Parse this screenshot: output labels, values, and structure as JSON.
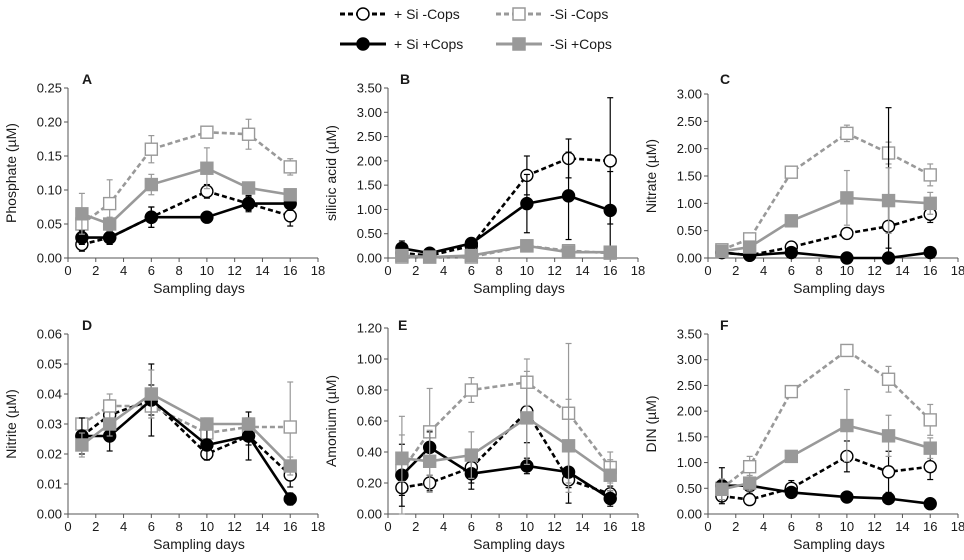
{
  "legend": {
    "entries": [
      {
        "label": "+ Si -Cops",
        "color": "#000000",
        "dash": true,
        "marker": "circle",
        "filled": false
      },
      {
        "label": "-Si -Cops",
        "color": "#999999",
        "dash": true,
        "marker": "square",
        "filled": false
      },
      {
        "label": "+ Si +Cops",
        "color": "#000000",
        "dash": false,
        "marker": "circle",
        "filled": true
      },
      {
        "label": "-Si +Cops",
        "color": "#999999",
        "dash": false,
        "marker": "square",
        "filled": true
      }
    ]
  },
  "chart_data": [
    {
      "panel": "A",
      "type": "line",
      "xlabel": "Sampling days",
      "ylabel": "Phosphate (µM)",
      "xlim": [
        0,
        18
      ],
      "xticks": [
        "0",
        "2",
        "4",
        "6",
        "8",
        "10",
        "12",
        "14",
        "16",
        "18"
      ],
      "ylim": [
        0,
        0.25
      ],
      "yticks": [
        "0.00",
        "0.05",
        "0.10",
        "0.15",
        "0.20",
        "0.25"
      ],
      "x": [
        1,
        3,
        6,
        10,
        13,
        16
      ],
      "series": [
        {
          "name": "+ Si -Cops",
          "values": [
            0.02,
            0.03,
            0.06,
            0.098,
            0.08,
            0.062
          ],
          "err": [
            0.01,
            0.01,
            0.015,
            0.01,
            0.01,
            0.015
          ]
        },
        {
          "name": "-Si -Cops",
          "values": [
            0.05,
            0.08,
            0.16,
            0.185,
            0.182,
            0.134
          ],
          "err": [
            0.015,
            0.035,
            0.02,
            0.0,
            0.022,
            0.012
          ]
        },
        {
          "name": "+ Si +Cops",
          "values": [
            0.03,
            0.03,
            0.06,
            0.06,
            0.08,
            0.08
          ],
          "err": [
            0.01,
            0.01,
            0.015,
            0.0,
            0.012,
            0.01
          ]
        },
        {
          "name": "-Si +Cops",
          "values": [
            0.065,
            0.05,
            0.108,
            0.132,
            0.103,
            0.093
          ],
          "err": [
            0.03,
            0.01,
            0.015,
            0.03,
            0.005,
            0.005
          ]
        }
      ]
    },
    {
      "panel": "B",
      "type": "line",
      "xlabel": "Sampling days",
      "ylabel": "silicic acid (µM)",
      "xlim": [
        0,
        18
      ],
      "xticks": [
        "0",
        "2",
        "4",
        "6",
        "8",
        "10",
        "12",
        "14",
        "16",
        "18"
      ],
      "ylim": [
        0,
        3.5
      ],
      "yticks": [
        "0.00",
        "0.50",
        "1.00",
        "1.50",
        "2.00",
        "2.50",
        "3.00",
        "3.50"
      ],
      "x": [
        1,
        3,
        6,
        10,
        13,
        16
      ],
      "series": [
        {
          "name": "+ Si -Cops",
          "values": [
            0.1,
            0.05,
            0.25,
            1.7,
            2.05,
            2.0
          ],
          "err": [
            0.05,
            0.02,
            0.1,
            0.4,
            0.4,
            1.3
          ]
        },
        {
          "name": "-Si -Cops",
          "values": [
            0.02,
            0.02,
            0.02,
            0.25,
            0.15,
            0.1
          ],
          "err": [
            0.02,
            0.02,
            0.02,
            0.1,
            0.1,
            0.1
          ]
        },
        {
          "name": "+ Si +Cops",
          "values": [
            0.2,
            0.1,
            0.3,
            1.12,
            1.28,
            0.98
          ],
          "err": [
            0.15,
            0.05,
            0.1,
            0.6,
            0.9,
            0.8
          ]
        },
        {
          "name": "-Si +Cops",
          "values": [
            0.05,
            0.02,
            0.05,
            0.25,
            0.12,
            0.12
          ],
          "err": [
            0.03,
            0.02,
            0.03,
            0.1,
            0.1,
            0.1
          ]
        }
      ]
    },
    {
      "panel": "C",
      "type": "line",
      "xlabel": "Sampling days",
      "ylabel": "Nitrate (µM)",
      "xlim": [
        0,
        18
      ],
      "xticks": [
        "0",
        "2",
        "4",
        "6",
        "8",
        "10",
        "12",
        "14",
        "16",
        "18"
      ],
      "ylim": [
        0,
        3.0
      ],
      "yticks": [
        "0.00",
        "0.50",
        "1.00",
        "1.50",
        "2.00",
        "2.50",
        "3.00"
      ],
      "x": [
        1,
        3,
        6,
        10,
        13,
        16
      ],
      "series": [
        {
          "name": "+ Si -Cops",
          "values": [
            0.1,
            0.05,
            0.2,
            0.45,
            0.58,
            0.8
          ],
          "err": [
            0.05,
            0.03,
            0.1,
            0.1,
            0.4,
            0.15
          ]
        },
        {
          "name": "-Si -Cops",
          "values": [
            0.15,
            0.35,
            1.57,
            2.28,
            1.92,
            1.52
          ],
          "err": [
            0.05,
            0.1,
            0.05,
            0.15,
            0.2,
            0.2
          ]
        },
        {
          "name": "+ Si +Cops",
          "values": [
            0.1,
            0.05,
            0.1,
            0.0,
            0.0,
            0.1
          ],
          "err": [
            0.03,
            0.02,
            0.05,
            0.02,
            2.75,
            0.1
          ]
        },
        {
          "name": "-Si +Cops",
          "values": [
            0.12,
            0.2,
            0.68,
            1.1,
            1.05,
            1.0
          ],
          "err": [
            0.05,
            0.05,
            0.05,
            0.5,
            0.6,
            0.2
          ]
        }
      ]
    },
    {
      "panel": "D",
      "type": "line",
      "xlabel": "Sampling days",
      "ylabel": "Nitrite (µM)",
      "xlim": [
        0,
        18
      ],
      "xticks": [
        "0",
        "2",
        "4",
        "6",
        "8",
        "10",
        "12",
        "14",
        "16",
        "18"
      ],
      "ylim": [
        0,
        0.06
      ],
      "yticks": [
        "0.00",
        "0.01",
        "0.02",
        "0.03",
        "0.04",
        "0.05",
        "0.06"
      ],
      "x": [
        1,
        3,
        6,
        10,
        13,
        16
      ],
      "series": [
        {
          "name": "+ Si -Cops",
          "values": [
            0.026,
            0.033,
            0.038,
            0.02,
            0.026,
            0.013
          ],
          "err": [
            0.003,
            0.005,
            0.005,
            0.002,
            0.003,
            0.004
          ]
        },
        {
          "name": "-Si -Cops",
          "values": [
            0.03,
            0.036,
            0.036,
            0.027,
            0.029,
            0.029
          ],
          "err": [
            0.002,
            0.004,
            0.004,
            0.003,
            0.003,
            0.015
          ]
        },
        {
          "name": "+ Si +Cops",
          "values": [
            0.026,
            0.026,
            0.038,
            0.023,
            0.026,
            0.005
          ],
          "err": [
            0.006,
            0.005,
            0.012,
            0.005,
            0.008,
            0.002
          ]
        },
        {
          "name": "-Si +Cops",
          "values": [
            0.023,
            0.03,
            0.04,
            0.03,
            0.03,
            0.016
          ],
          "err": [
            0.004,
            0.004,
            0.008,
            0.002,
            0.002,
            0.003
          ]
        }
      ]
    },
    {
      "panel": "E",
      "type": "line",
      "xlabel": "Sampling days",
      "ylabel": "Amonium (µM)",
      "xlim": [
        0,
        18
      ],
      "xticks": [
        "0",
        "2",
        "4",
        "6",
        "8",
        "10",
        "12",
        "14",
        "16",
        "18"
      ],
      "ylim": [
        0,
        1.2
      ],
      "yticks": [
        "0.00",
        "0.20",
        "0.40",
        "0.60",
        "0.80",
        "1.00",
        "1.20"
      ],
      "x": [
        1,
        3,
        6,
        10,
        13,
        16
      ],
      "series": [
        {
          "name": "+ Si -Cops",
          "values": [
            0.17,
            0.2,
            0.3,
            0.66,
            0.22,
            0.13
          ],
          "err": [
            0.05,
            0.05,
            0.1,
            0.2,
            0.05,
            0.05
          ]
        },
        {
          "name": "-Si -Cops",
          "values": [
            0.28,
            0.53,
            0.8,
            0.85,
            0.65,
            0.3
          ],
          "err": [
            0.35,
            0.28,
            0.08,
            0.15,
            0.45,
            0.1
          ]
        },
        {
          "name": "+ Si +Cops",
          "values": [
            0.25,
            0.43,
            0.26,
            0.31,
            0.27,
            0.1
          ],
          "err": [
            0.2,
            0.1,
            0.1,
            0.05,
            0.2,
            0.05
          ]
        },
        {
          "name": "-Si +Cops",
          "values": [
            0.36,
            0.34,
            0.38,
            0.62,
            0.44,
            0.25
          ],
          "err": [
            0.15,
            0.2,
            0.15,
            0.3,
            0.3,
            0.1
          ]
        }
      ]
    },
    {
      "panel": "F",
      "type": "line",
      "xlabel": "Sampling days",
      "ylabel": "DIN (µM)",
      "xlim": [
        0,
        18
      ],
      "xticks": [
        "0",
        "2",
        "4",
        "6",
        "8",
        "10",
        "12",
        "14",
        "16",
        "18"
      ],
      "ylim": [
        0,
        3.5
      ],
      "yticks": [
        "0.00",
        "0.50",
        "1.00",
        "1.50",
        "2.00",
        "2.50",
        "3.00",
        "3.50"
      ],
      "x": [
        1,
        3,
        6,
        10,
        13,
        16
      ],
      "series": [
        {
          "name": "+ Si -Cops",
          "values": [
            0.35,
            0.28,
            0.5,
            1.12,
            0.82,
            0.92
          ],
          "err": [
            0.1,
            0.1,
            0.15,
            0.3,
            0.4,
            0.25
          ]
        },
        {
          "name": "-Si -Cops",
          "values": [
            0.5,
            0.92,
            2.38,
            3.18,
            2.62,
            1.83
          ],
          "err": [
            0.1,
            0.2,
            0.05,
            0.1,
            0.25,
            0.3
          ]
        },
        {
          "name": "+ Si +Cops",
          "values": [
            0.55,
            0.55,
            0.42,
            0.33,
            0.3,
            0.2
          ],
          "err": [
            0.35,
            0.15,
            0.1,
            0.05,
            0.05,
            0.1
          ]
        },
        {
          "name": "-Si +Cops",
          "values": [
            0.48,
            0.6,
            1.12,
            1.72,
            1.52,
            1.28
          ],
          "err": [
            0.2,
            0.15,
            0.1,
            0.7,
            0.4,
            0.2
          ]
        }
      ]
    }
  ]
}
